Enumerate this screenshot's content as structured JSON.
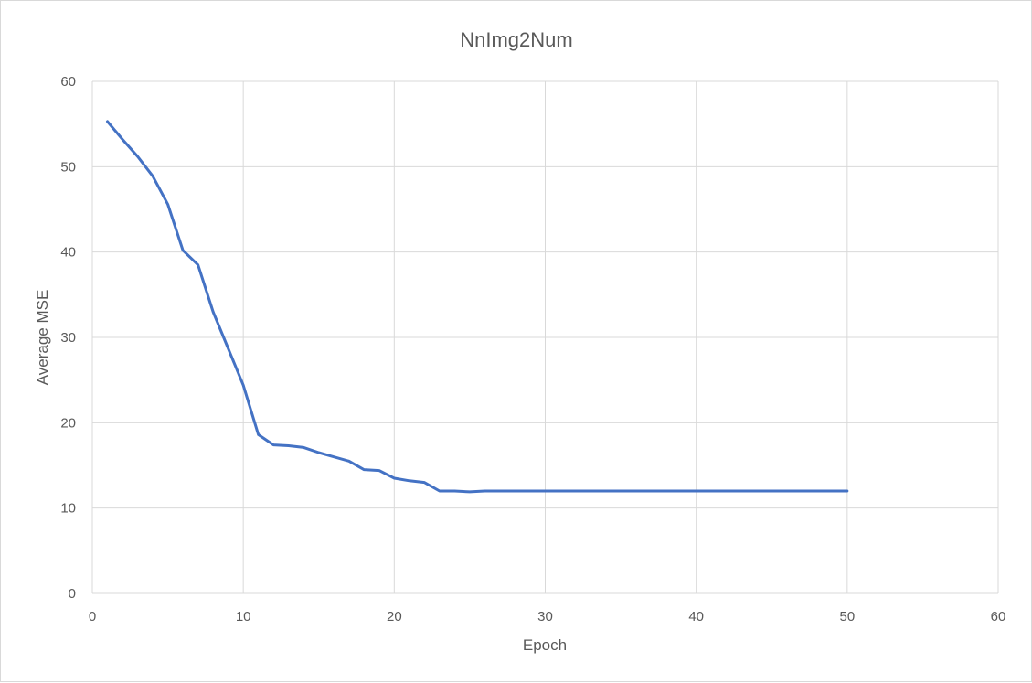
{
  "chart_data": {
    "type": "line",
    "title": "NnImg2Num",
    "xlabel": "Epoch",
    "ylabel": "Average MSE",
    "xlim": [
      0,
      60
    ],
    "ylim": [
      0,
      60
    ],
    "x_ticks": [
      0,
      10,
      20,
      30,
      40,
      50,
      60
    ],
    "y_ticks": [
      0,
      10,
      20,
      30,
      40,
      50,
      60
    ],
    "grid": true,
    "legend": "none",
    "color": "#4472c4",
    "series": [
      {
        "x": [
          1,
          2,
          3,
          4,
          5,
          6,
          7,
          8,
          9,
          10,
          11,
          12,
          13,
          14,
          15,
          16,
          17,
          18,
          19,
          20,
          21,
          22,
          23,
          24,
          25,
          26,
          27,
          28,
          29,
          30,
          31,
          32,
          33,
          34,
          35,
          36,
          37,
          38,
          39,
          40,
          41,
          42,
          43,
          44,
          45,
          46,
          47,
          48,
          49,
          50
        ],
        "values": [
          55.3,
          53.2,
          51.2,
          48.9,
          45.6,
          40.2,
          38.5,
          33.0,
          28.7,
          24.4,
          18.6,
          17.4,
          17.3,
          17.1,
          16.5,
          16.0,
          15.5,
          14.5,
          14.4,
          13.5,
          13.2,
          13.0,
          12.0,
          12.0,
          11.9,
          12.0,
          12.0,
          12.0,
          12.0,
          12.0,
          12.0,
          12.0,
          12.0,
          12.0,
          12.0,
          12.0,
          12.0,
          12.0,
          12.0,
          12.0,
          12.0,
          12.0,
          12.0,
          12.0,
          12.0,
          12.0,
          12.0,
          12.0,
          12.0,
          12.0
        ]
      }
    ]
  }
}
